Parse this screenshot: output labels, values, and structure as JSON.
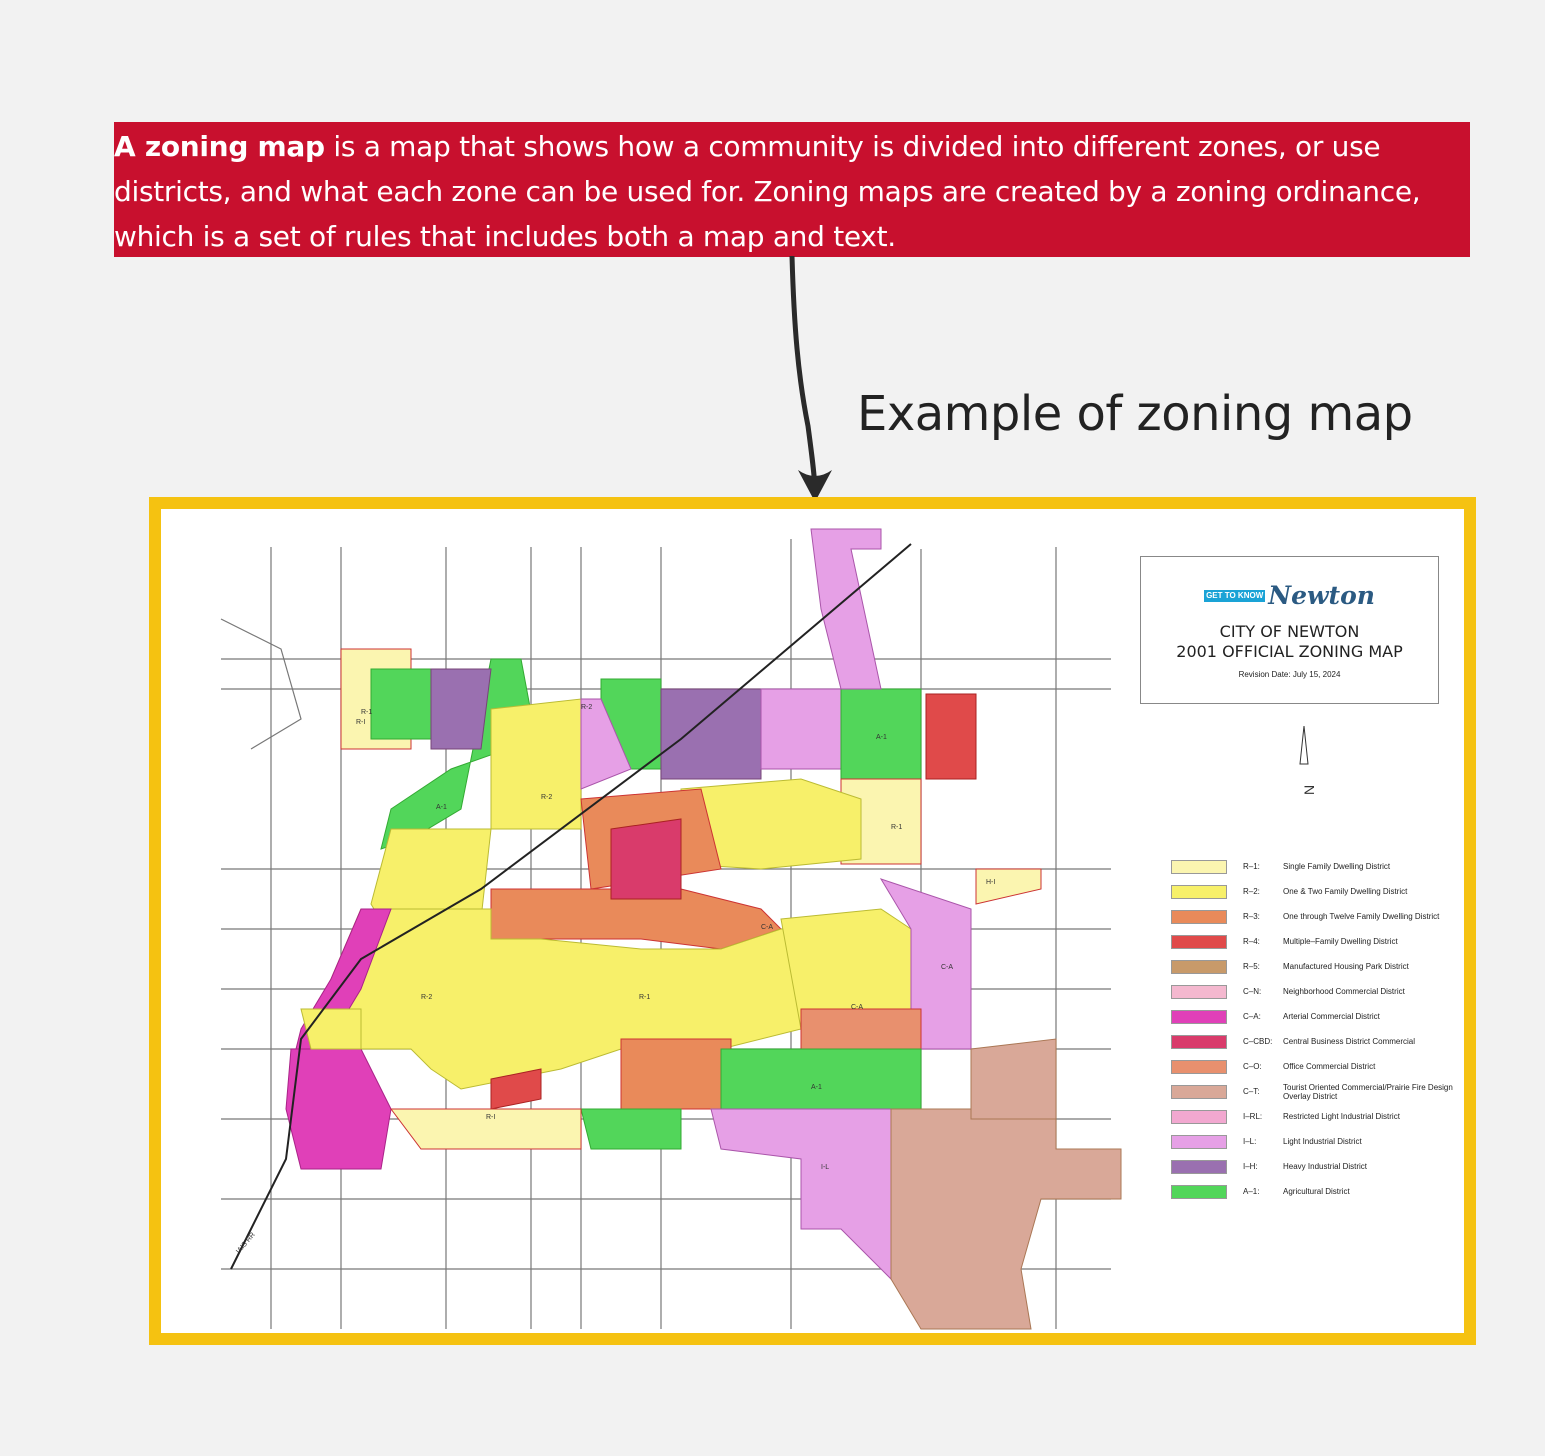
{
  "definition": {
    "term": "A zoning map",
    "text": " is a map that shows how a community is divided into different zones, or use districts, and what each zone can be used for. Zoning maps are created by a zoning ordinance, which is a set of rules that includes both a map and text."
  },
  "example_title": "Example of zoning map",
  "colors": {
    "definition_bg": "#c8102e",
    "frame": "#f5c211",
    "page_bg": "#f2f2f2"
  },
  "map": {
    "logo_badge": "GET TO KNOW",
    "logo_name": "Newton",
    "title_line1": "CITY OF NEWTON",
    "title_line2": "2001 OFFICIAL ZONING MAP",
    "revision": "Revision Date: July 15, 2024",
    "legend": [
      {
        "code": "R–1:",
        "label": "Single Family Dwelling District",
        "color": "#fbf5b0"
      },
      {
        "code": "R–2:",
        "label": "One & Two Family Dwelling District",
        "color": "#f7f06a"
      },
      {
        "code": "R–3:",
        "label": "One through Twelve Family Dwelling District",
        "color": "#e98a5a"
      },
      {
        "code": "R–4:",
        "label": "Multiple–Family Dwelling District",
        "color": "#e04a4a"
      },
      {
        "code": "R–5:",
        "label": "Manufactured Housing Park District",
        "color": "#c89a6a"
      },
      {
        "code": "C–N:",
        "label": "Neighborhood Commercial District",
        "color": "#f4b8cf"
      },
      {
        "code": "C–A:",
        "label": "Arterial Commercial District",
        "color": "#e040b8"
      },
      {
        "code": "C–CBD:",
        "label": "Central Business District Commercial",
        "color": "#d93b6b"
      },
      {
        "code": "C–O:",
        "label": "Office Commercial District",
        "color": "#e8906e"
      },
      {
        "code": "C–T:",
        "label": "Tourist Oriented Commercial/Prairie Fire Design Overlay District",
        "color": "#d9a898"
      },
      {
        "code": "I–RL:",
        "label": "Restricted Light Industrial District",
        "color": "#f2a8d0"
      },
      {
        "code": "I–L:",
        "label": "Light Industrial District",
        "color": "#e6a0e6"
      },
      {
        "code": "I–H:",
        "label": "Heavy Industrial District",
        "color": "#9a70b0"
      },
      {
        "code": "A–1:",
        "label": "Agricultural District",
        "color": "#52d65a"
      }
    ],
    "zone_labels": [
      "R-1",
      "R-2",
      "R-2",
      "R-1",
      "R-I",
      "C-A",
      "C-A",
      "A-1",
      "A-1",
      "R-I",
      "H-I",
      "A-1",
      "R-1",
      "R-2",
      "C-A",
      "I-L"
    ],
    "railroad_label": "IAIS RR"
  }
}
